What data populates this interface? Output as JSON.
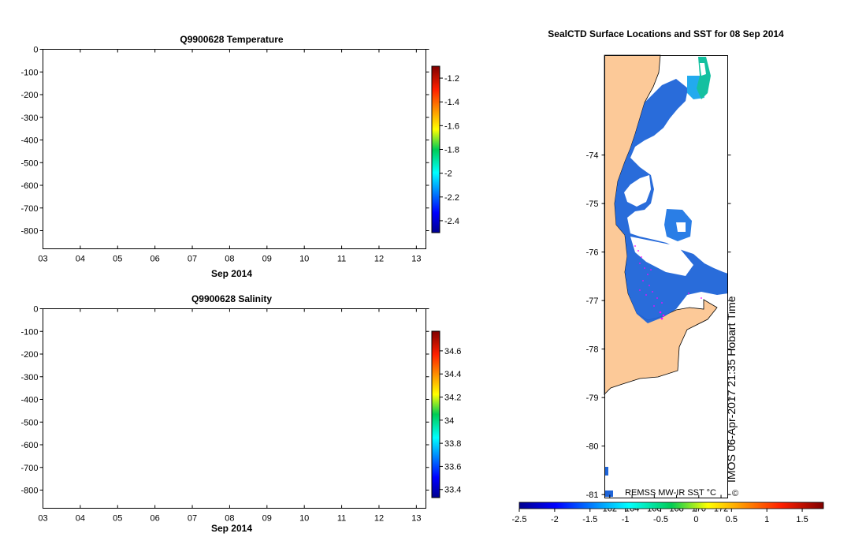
{
  "chart_data": [
    {
      "type": "heatmap",
      "title": "Q9900628  Temperature",
      "xlabel": "Sep 2014",
      "x_ticks": [
        "03",
        "04",
        "05",
        "06",
        "07",
        "08",
        "09",
        "10",
        "11",
        "12",
        "13"
      ],
      "y_ticks": [
        "0",
        "-100",
        "-200",
        "-300",
        "-400",
        "-500",
        "-600",
        "-700",
        "-800"
      ],
      "ylim": [
        -880,
        0
      ],
      "colorbar": {
        "min": -2.5,
        "max": -1.1,
        "ticks": [
          "-1.2",
          "-1.4",
          "-1.6",
          "-1.8",
          "-2",
          "-2.2",
          "-2.4"
        ]
      },
      "values": []
    },
    {
      "type": "heatmap",
      "title": "Q9900628  Salinity",
      "xlabel": "Sep 2014",
      "x_ticks": [
        "03",
        "04",
        "05",
        "06",
        "07",
        "08",
        "09",
        "10",
        "11",
        "12",
        "13"
      ],
      "y_ticks": [
        "0",
        "-100",
        "-200",
        "-300",
        "-400",
        "-500",
        "-600",
        "-700",
        "-800"
      ],
      "ylim": [
        -880,
        0
      ],
      "colorbar": {
        "min": 33.33,
        "max": 34.77,
        "ticks": [
          "34.6",
          "34.4",
          "34.2",
          "34",
          "33.8",
          "33.6",
          "33.4"
        ]
      },
      "values": []
    },
    {
      "type": "heatmap",
      "title": "SealCTD Surface Locations and SST for 08 Sep 2014",
      "lon_range": [
        161.55,
        172.6
      ],
      "lat_range": [
        -81.07,
        -71.95
      ],
      "lat_ticks": [
        "-74",
        "-75",
        "-76",
        "-77",
        "-78",
        "-79",
        "-80",
        "-81"
      ],
      "lon_ticks": [
        "162",
        "164",
        "166",
        "168",
        "170",
        "172"
      ],
      "colorbar": {
        "min": -2.5,
        "max": 1.8,
        "label": "REMSS MW-IR SST °C",
        "ticks": [
          "-2.5",
          "-2",
          "-1.5",
          "-1",
          "-0.5",
          "0",
          "0.5",
          "1",
          "1.5"
        ]
      },
      "credit": "IMOS 06-Apr-2017 21:35 Hobart Time",
      "credit_symbol": "©"
    }
  ],
  "colors": {
    "land": "#fcc998",
    "sst_dominant": "#1e64d8",
    "seal_points": "#ff00ff"
  }
}
